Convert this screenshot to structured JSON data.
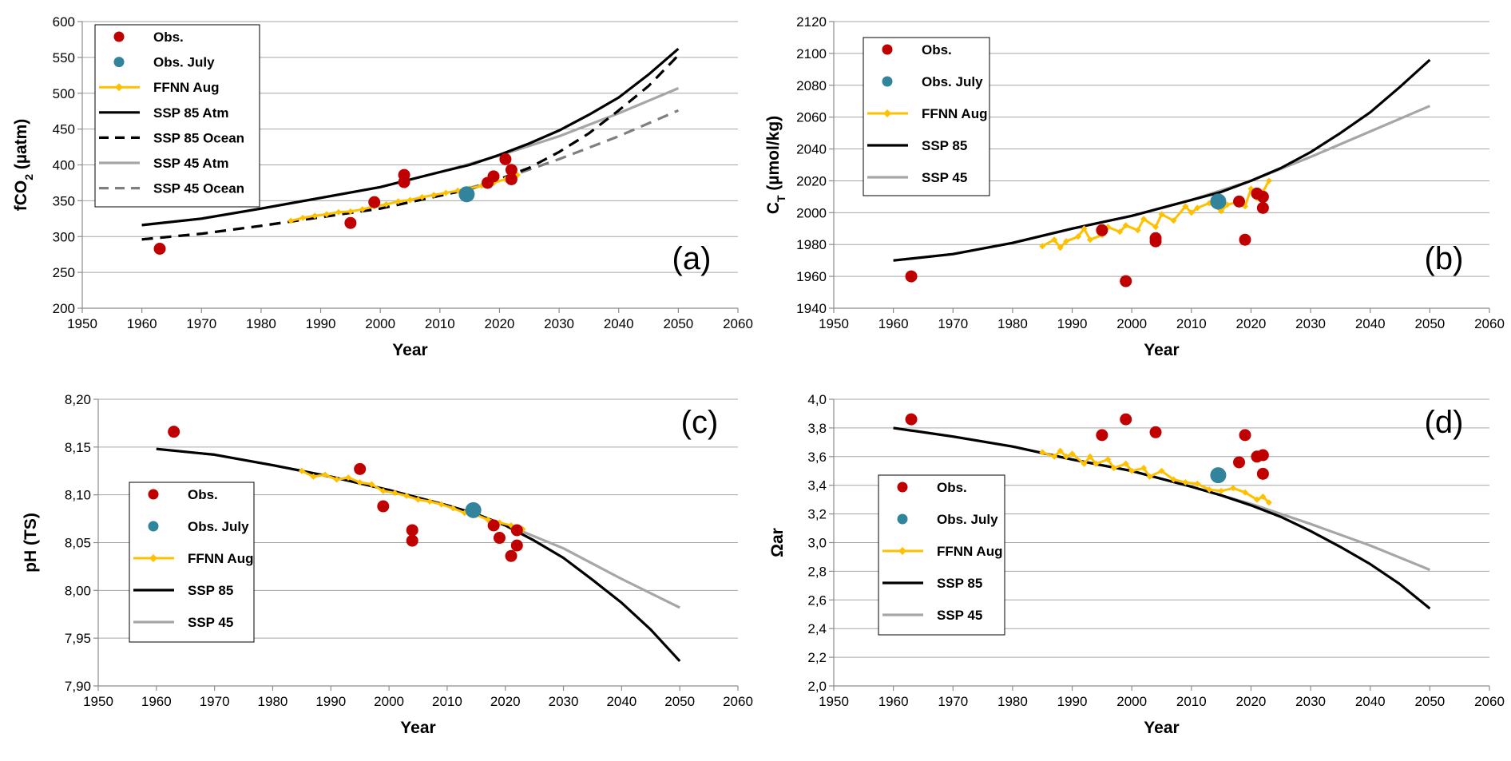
{
  "colors": {
    "obs": "#c00000",
    "obs_july": "#31849b",
    "ffnn": "#ffc000",
    "ssp85": "#000000",
    "ssp45": "#a6a6a6",
    "ssp45_ocean": "#7f7f7f"
  },
  "chart_data": [
    {
      "id": "a",
      "type": "line",
      "panel_label": "(a)",
      "xlabel": "Year",
      "ylabel_main": "fCO",
      "ylabel_sub": "2",
      "ylabel_rest": " (µatm)",
      "xlim": [
        1950,
        2060
      ],
      "ylim": [
        200,
        600
      ],
      "xticks": [
        1950,
        1960,
        1970,
        1980,
        1990,
        2000,
        2010,
        2020,
        2030,
        2040,
        2050,
        2060
      ],
      "xtick_labels": [
        "1950",
        "1960",
        "1970",
        "1980",
        "1990",
        "2000",
        "2010",
        "2020",
        "2030",
        "2040",
        "2050",
        "2060"
      ],
      "yticks": [
        200,
        250,
        300,
        350,
        400,
        450,
        500,
        550,
        600
      ],
      "ytick_labels": [
        "200",
        "250",
        "300",
        "350",
        "400",
        "450",
        "500",
        "550",
        "600"
      ],
      "legend_position": "top-left",
      "legend": [
        "Obs.",
        "Obs. July",
        "FFNN Aug",
        "SSP 85 Atm",
        "SSP 85 Ocean",
        "SSP 45 Atm",
        "SSP 45 Ocean"
      ],
      "series": [
        {
          "name": "SSP 45 Atm",
          "style": "ssp45",
          "x": [
            1960,
            1970,
            1980,
            1990,
            2000,
            2010,
            2020,
            2030,
            2040,
            2050
          ],
          "y": [
            316,
            325,
            339,
            354,
            369,
            390,
            413,
            440,
            472,
            507
          ]
        },
        {
          "name": "SSP 45 Ocean",
          "style": "ssp45_ocean",
          "x": [
            1960,
            1970,
            1980,
            1990,
            2000,
            2010,
            2020,
            2030,
            2040,
            2050
          ],
          "y": [
            296,
            304,
            315,
            327,
            339,
            357,
            379,
            408,
            440,
            476
          ]
        },
        {
          "name": "SSP 85 Atm",
          "style": "ssp85",
          "x": [
            1960,
            1970,
            1980,
            1990,
            2000,
            2010,
            2015,
            2020,
            2025,
            2030,
            2035,
            2040,
            2045,
            2050
          ],
          "y": [
            316,
            325,
            339,
            354,
            369,
            390,
            400,
            414,
            430,
            448,
            470,
            494,
            526,
            562
          ]
        },
        {
          "name": "SSP 85 Ocean",
          "style": "ssp85_dash",
          "x": [
            1960,
            1970,
            1980,
            1990,
            2000,
            2010,
            2015,
            2020,
            2025,
            2030,
            2035,
            2040,
            2045,
            2050
          ],
          "y": [
            296,
            304,
            315,
            327,
            339,
            357,
            366,
            380,
            396,
            418,
            444,
            476,
            510,
            553
          ]
        },
        {
          "name": "FFNN Aug",
          "style": "ffnn",
          "x": [
            1985,
            1987,
            1989,
            1991,
            1993,
            1995,
            1997,
            1999,
            2001,
            2003,
            2005,
            2007,
            2009,
            2011,
            2013,
            2015,
            2017,
            2019,
            2021,
            2023
          ],
          "y": [
            322,
            326,
            329,
            331,
            334,
            335,
            338,
            342,
            345,
            349,
            351,
            355,
            358,
            361,
            364,
            367,
            371,
            375,
            380,
            386
          ]
        },
        {
          "name": "Obs.",
          "style": "obs",
          "x": [
            1963,
            1995,
            1999,
            2004,
            2004,
            2018,
            2019,
            2021,
            2022,
            2022
          ],
          "y": [
            283,
            319,
            348,
            376,
            386,
            375,
            384,
            408,
            393,
            380
          ]
        },
        {
          "name": "Obs. July",
          "style": "obs_july",
          "x": [
            2014.5
          ],
          "y": [
            359
          ]
        }
      ]
    },
    {
      "id": "b",
      "type": "line",
      "panel_label": "(b)",
      "xlabel": "Year",
      "ylabel_main": "C",
      "ylabel_sub": "T",
      "ylabel_rest": " (µmol/kg)",
      "xlim": [
        1950,
        2060
      ],
      "ylim": [
        1940,
        2120
      ],
      "xticks": [
        1950,
        1960,
        1970,
        1980,
        1990,
        2000,
        2010,
        2020,
        2030,
        2040,
        2050,
        2060
      ],
      "xtick_labels": [
        "1950",
        "1960",
        "1970",
        "1980",
        "1990",
        "2000",
        "2010",
        "2020",
        "2030",
        "2040",
        "2050",
        "2060"
      ],
      "yticks": [
        1940,
        1960,
        1980,
        2000,
        2020,
        2040,
        2060,
        2080,
        2100,
        2120
      ],
      "ytick_labels": [
        "1940",
        "1960",
        "1980",
        "2000",
        "2020",
        "2040",
        "2060",
        "2080",
        "2100",
        "2120"
      ],
      "legend_position": "top-left",
      "legend": [
        "Obs.",
        "Obs. July",
        "FFNN Aug",
        "SSP 85",
        "SSP 45"
      ],
      "series": [
        {
          "name": "SSP 45",
          "style": "ssp45",
          "x": [
            1960,
            1970,
            1980,
            1990,
            2000,
            2010,
            2020,
            2030,
            2040,
            2050
          ],
          "y": [
            1970,
            1974,
            1981,
            1990,
            1998,
            2008,
            2020,
            2035,
            2051,
            2067
          ]
        },
        {
          "name": "SSP 85",
          "style": "ssp85",
          "x": [
            1960,
            1970,
            1980,
            1990,
            2000,
            2010,
            2015,
            2020,
            2025,
            2030,
            2035,
            2040,
            2045,
            2050
          ],
          "y": [
            1970,
            1974,
            1981,
            1990,
            1998,
            2008,
            2013,
            2020,
            2028,
            2038,
            2050,
            2063,
            2079,
            2096
          ]
        },
        {
          "name": "FFNN Aug",
          "style": "ffnn",
          "x": [
            1985,
            1987,
            1988,
            1989,
            1991,
            1992,
            1993,
            1995,
            1996,
            1998,
            1999,
            2001,
            2002,
            2004,
            2005,
            2007,
            2009,
            2010,
            2011,
            2013,
            2015,
            2016,
            2018,
            2019,
            2020,
            2021,
            2022,
            2023
          ],
          "y": [
            1979,
            1983,
            1978,
            1982,
            1985,
            1990,
            1983,
            1986,
            1991,
            1988,
            1992,
            1989,
            1996,
            1991,
            1999,
            1995,
            2004,
            2000,
            2003,
            2006,
            2001,
            2005,
            2007,
            2004,
            2015,
            2009,
            2013,
            2020
          ]
        },
        {
          "name": "Obs.",
          "style": "obs",
          "x": [
            1963,
            1995,
            1999,
            2004,
            2004,
            2018,
            2019,
            2021,
            2022,
            2022
          ],
          "y": [
            1960,
            1989,
            1957,
            1982,
            1984,
            2007,
            1983,
            2012,
            2010,
            2003
          ]
        },
        {
          "name": "Obs. July",
          "style": "obs_july",
          "x": [
            2014.5
          ],
          "y": [
            2007
          ]
        }
      ]
    },
    {
      "id": "c",
      "type": "line",
      "panel_label": "(c)",
      "xlabel": "Year",
      "ylabel_main": "pH (TS)",
      "ylabel_sub": "",
      "ylabel_rest": "",
      "xlim": [
        1950,
        2060
      ],
      "ylim": [
        7.9,
        8.2
      ],
      "xticks": [
        1950,
        1960,
        1970,
        1980,
        1990,
        2000,
        2010,
        2020,
        2030,
        2040,
        2050,
        2060
      ],
      "xtick_labels": [
        "1950",
        "1960",
        "1970",
        "1980",
        "1990",
        "2000",
        "2010",
        "2020",
        "2030",
        "2040",
        "2050",
        "2060"
      ],
      "yticks": [
        7.9,
        7.95,
        8.0,
        8.05,
        8.1,
        8.15,
        8.2
      ],
      "ytick_labels": [
        "7,90",
        "7,95",
        "8,00",
        "8,05",
        "8,10",
        "8,15",
        "8,20"
      ],
      "legend_position": "bottom-left",
      "legend": [
        "Obs.",
        "Obs. July",
        "FFNN Aug",
        "SSP 85",
        "SSP 45"
      ],
      "series": [
        {
          "name": "SSP 45",
          "style": "ssp45",
          "x": [
            1960,
            1970,
            1980,
            1990,
            2000,
            2010,
            2020,
            2030,
            2040,
            2050
          ],
          "y": [
            8.148,
            8.142,
            8.131,
            8.119,
            8.105,
            8.089,
            8.069,
            8.044,
            8.012,
            7.982
          ]
        },
        {
          "name": "SSP 85",
          "style": "ssp85",
          "x": [
            1960,
            1970,
            1980,
            1990,
            2000,
            2010,
            2015,
            2020,
            2025,
            2030,
            2035,
            2040,
            2045,
            2050
          ],
          "y": [
            8.148,
            8.142,
            8.131,
            8.119,
            8.105,
            8.089,
            8.08,
            8.068,
            8.052,
            8.034,
            8.011,
            7.987,
            7.959,
            7.926
          ]
        },
        {
          "name": "FFNN Aug",
          "style": "ffnn",
          "x": [
            1985,
            1987,
            1989,
            1991,
            1993,
            1995,
            1997,
            1999,
            2001,
            2003,
            2005,
            2007,
            2009,
            2011,
            2013,
            2015,
            2017,
            2019,
            2021,
            2023
          ],
          "y": [
            8.125,
            8.119,
            8.121,
            8.116,
            8.118,
            8.113,
            8.111,
            8.104,
            8.102,
            8.099,
            8.095,
            8.093,
            8.09,
            8.086,
            8.081,
            8.079,
            8.074,
            8.071,
            8.068,
            8.064
          ]
        },
        {
          "name": "Obs.",
          "style": "obs",
          "x": [
            1963,
            1995,
            1999,
            2004,
            2004,
            2018,
            2019,
            2021,
            2022,
            2022
          ],
          "y": [
            8.166,
            8.127,
            8.088,
            8.063,
            8.052,
            8.068,
            8.055,
            8.036,
            8.047,
            8.063
          ]
        },
        {
          "name": "Obs. July",
          "style": "obs_july",
          "x": [
            2014.5
          ],
          "y": [
            8.084
          ]
        }
      ]
    },
    {
      "id": "d",
      "type": "line",
      "panel_label": "(d)",
      "xlabel": "Year",
      "ylabel_main": "Ωar",
      "ylabel_sub": "",
      "ylabel_rest": "",
      "xlim": [
        1950,
        2060
      ],
      "ylim": [
        2.0,
        4.0
      ],
      "xticks": [
        1950,
        1960,
        1970,
        1980,
        1990,
        2000,
        2010,
        2020,
        2030,
        2040,
        2050,
        2060
      ],
      "xtick_labels": [
        "1950",
        "1960",
        "1970",
        "1980",
        "1990",
        "2000",
        "2010",
        "2020",
        "2030",
        "2040",
        "2050",
        "2060"
      ],
      "yticks": [
        2.0,
        2.2,
        2.4,
        2.6,
        2.8,
        3.0,
        3.2,
        3.4,
        3.6,
        3.8,
        4.0
      ],
      "ytick_labels": [
        "2,0",
        "2,2",
        "2,4",
        "2,6",
        "2,8",
        "3,0",
        "3,2",
        "3,4",
        "3,6",
        "3,8",
        "4,0"
      ],
      "legend_position": "bottom-left",
      "legend": [
        "Obs.",
        "Obs. July",
        "FFNN Aug",
        "SSP 85",
        "SSP 45"
      ],
      "series": [
        {
          "name": "SSP 45",
          "style": "ssp45",
          "x": [
            1960,
            1970,
            1980,
            1990,
            2000,
            2010,
            2020,
            2030,
            2040,
            2050
          ],
          "y": [
            3.8,
            3.74,
            3.67,
            3.58,
            3.5,
            3.39,
            3.27,
            3.13,
            2.98,
            2.81
          ]
        },
        {
          "name": "SSP 85",
          "style": "ssp85",
          "x": [
            1960,
            1970,
            1980,
            1990,
            2000,
            2010,
            2015,
            2020,
            2025,
            2030,
            2035,
            2040,
            2045,
            2050
          ],
          "y": [
            3.8,
            3.74,
            3.67,
            3.58,
            3.5,
            3.39,
            3.33,
            3.26,
            3.18,
            3.08,
            2.97,
            2.85,
            2.71,
            2.54
          ]
        },
        {
          "name": "FFNN Aug",
          "style": "ffnn",
          "x": [
            1985,
            1987,
            1988,
            1989,
            1990,
            1992,
            1993,
            1994,
            1996,
            1997,
            1999,
            2000,
            2002,
            2003,
            2005,
            2007,
            2009,
            2011,
            2013,
            2015,
            2017,
            2019,
            2021,
            2022,
            2023
          ],
          "y": [
            3.63,
            3.6,
            3.64,
            3.6,
            3.62,
            3.55,
            3.6,
            3.55,
            3.58,
            3.52,
            3.55,
            3.5,
            3.52,
            3.46,
            3.5,
            3.44,
            3.42,
            3.41,
            3.37,
            3.36,
            3.38,
            3.35,
            3.3,
            3.32,
            3.28
          ]
        },
        {
          "name": "Obs.",
          "style": "obs",
          "x": [
            1963,
            1995,
            1999,
            2004,
            2018,
            2019,
            2021,
            2022,
            2022
          ],
          "y": [
            3.86,
            3.75,
            3.86,
            3.77,
            3.56,
            3.75,
            3.6,
            3.61,
            3.48
          ]
        },
        {
          "name": "Obs. July",
          "style": "obs_july",
          "x": [
            2014.5
          ],
          "y": [
            3.47
          ]
        }
      ]
    }
  ]
}
